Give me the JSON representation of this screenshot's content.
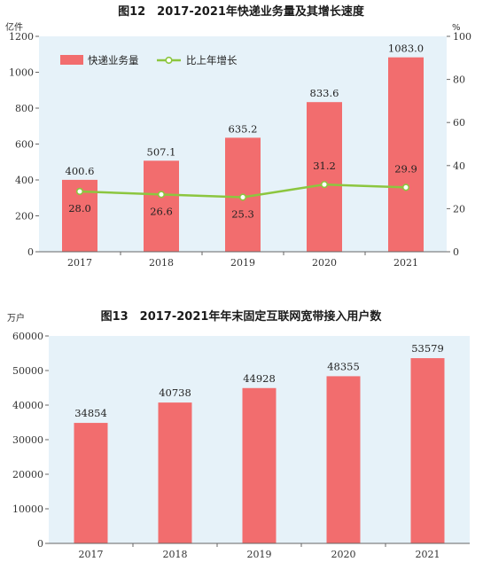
{
  "chart_data": [
    {
      "type": "bar",
      "title": "图12　2017-2021年快递业务量及其增长速度",
      "ylabel": "亿件",
      "y2label": "%",
      "categories": [
        "2017",
        "2018",
        "2019",
        "2020",
        "2021"
      ],
      "ylim": [
        0,
        1200
      ],
      "yticks": [
        "0",
        "200",
        "400",
        "600",
        "800",
        "1000",
        "1200"
      ],
      "y2lim": [
        0,
        100
      ],
      "y2ticks": [
        "0",
        "20",
        "40",
        "60",
        "80",
        "100"
      ],
      "legend_position": "top-left",
      "grid": false,
      "series": [
        {
          "name": "快递业务量",
          "type": "bar",
          "values": [
            400.6,
            507.1,
            635.2,
            833.6,
            1083.0
          ],
          "labels": [
            "400.6",
            "507.1",
            "635.2",
            "833.6",
            "1083.0"
          ],
          "color": "#f26d6e"
        },
        {
          "name": "比上年增长",
          "type": "line",
          "axis": "right",
          "values": [
            28.0,
            26.6,
            25.3,
            31.2,
            29.9
          ],
          "labels": [
            "28.0",
            "26.6",
            "25.3",
            "31.2",
            "29.9"
          ],
          "color": "#8cc63f"
        }
      ]
    },
    {
      "type": "bar",
      "title": "图13　2017-2021年年末固定互联网宽带接入用户数",
      "ylabel": "万户",
      "categories": [
        "2017",
        "2018",
        "2019",
        "2020",
        "2021"
      ],
      "ylim": [
        0,
        60000
      ],
      "yticks": [
        "0",
        "10000",
        "20000",
        "30000",
        "40000",
        "50000",
        "60000"
      ],
      "grid": false,
      "series": [
        {
          "type": "bar",
          "values": [
            34854,
            40738,
            44928,
            48355,
            53579
          ],
          "labels": [
            "34854",
            "40738",
            "44928",
            "48355",
            "53579"
          ],
          "color": "#f26d6e"
        }
      ]
    }
  ]
}
